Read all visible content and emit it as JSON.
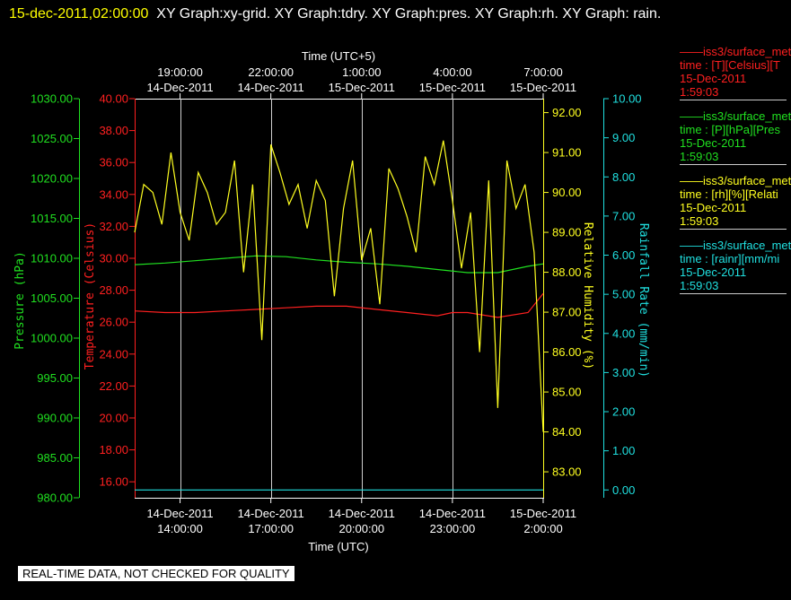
{
  "header": {
    "timestamp": "15-dec-2011,02:00:00",
    "titles": "XY Graph:xy-grid.  XY Graph:tdry.  XY Graph:pres.  XY Graph:rh.  XY Graph: rain."
  },
  "footer": {
    "notice": "REAL-TIME DATA, NOT CHECKED FOR QUALITY"
  },
  "legend": [
    {
      "line": "——iss3/surface_met",
      "units": "time : [T][Celsius][T",
      "date": "15-Dec-2011",
      "time": "1:59:03",
      "color": "#ff2020"
    },
    {
      "line": "——iss3/surface_met",
      "units": "time : [P][hPa][Pres",
      "date": "15-Dec-2011",
      "time": "1:59:03",
      "color": "#20e020"
    },
    {
      "line": "——iss3/surface_met",
      "units": "time : [rh][%][Relati",
      "date": "15-Dec-2011",
      "time": "1:59:03",
      "color": "#ffff20"
    },
    {
      "line": "——iss3/surface_met",
      "units": "time : [rainr][mm/mi",
      "date": "15-Dec-2011",
      "time": "1:59:03",
      "color": "#20e0e0"
    }
  ],
  "chart_data": {
    "type": "line",
    "x_top_label": "Time (UTC+5)",
    "x_bottom_label": "Time (UTC)",
    "x_range_utc_hours": [
      12.5,
      26
    ],
    "grid": true,
    "x_ticks_bottom": [
      {
        "hour": 14,
        "date": "14-Dec-2011",
        "time": "14:00:00"
      },
      {
        "hour": 17,
        "date": "14-Dec-2011",
        "time": "17:00:00"
      },
      {
        "hour": 20,
        "date": "14-Dec-2011",
        "time": "20:00:00"
      },
      {
        "hour": 23,
        "date": "14-Dec-2011",
        "time": "23:00:00"
      },
      {
        "hour": 26,
        "date": "15-Dec-2011",
        "time": "2:00:00"
      }
    ],
    "x_ticks_top": [
      {
        "hour": 14,
        "time": "19:00:00",
        "date": "14-Dec-2011"
      },
      {
        "hour": 17,
        "time": "22:00:00",
        "date": "14-Dec-2011"
      },
      {
        "hour": 20,
        "time": "1:00:00",
        "date": "15-Dec-2011"
      },
      {
        "hour": 23,
        "time": "4:00:00",
        "date": "15-Dec-2011"
      },
      {
        "hour": 26,
        "time": "7:00:00",
        "date": "15-Dec-2011"
      }
    ],
    "axes": {
      "pressure": {
        "label": "Pressure (hPa)",
        "range": [
          980,
          1030
        ],
        "ticks": [
          "980.00",
          "985.00",
          "990.00",
          "995.00",
          "1000.00",
          "1005.00",
          "1010.00",
          "1015.00",
          "1020.00",
          "1025.00",
          "1030.00"
        ],
        "color": "#20e020"
      },
      "temperature": {
        "label": "Temperature (Celsius)",
        "range": [
          15,
          40
        ],
        "ticks": [
          "16.00",
          "18.00",
          "20.00",
          "22.00",
          "24.00",
          "26.00",
          "28.00",
          "30.00",
          "32.00",
          "34.00",
          "36.00",
          "38.00",
          "40.00"
        ],
        "color": "#ff2020"
      },
      "humidity": {
        "label": "Relative Humidity (%)",
        "range": [
          82.35,
          92.35
        ],
        "ticks": [
          "83.00",
          "84.00",
          "85.00",
          "86.00",
          "87.00",
          "88.00",
          "89.00",
          "90.00",
          "91.00",
          "92.00"
        ],
        "color": "#ffff20"
      },
      "rainfall": {
        "label": "Rainfall Rate (mm/min)",
        "range": [
          -0.2,
          10
        ],
        "ticks": [
          "0.00",
          "1.00",
          "2.00",
          "3.00",
          "4.00",
          "5.00",
          "6.00",
          "7.00",
          "8.00",
          "9.00",
          "10.00"
        ],
        "color": "#20e0e0"
      }
    },
    "series": [
      {
        "name": "iss3/surface_met pres",
        "axis": "pressure",
        "x": [
          12.5,
          13.5,
          14.5,
          15.5,
          16.5,
          17.5,
          18.5,
          19.5,
          20.5,
          21.5,
          22.5,
          23.5,
          24.5,
          25.5,
          26
        ],
        "y": [
          1009.2,
          1009.4,
          1009.7,
          1010.0,
          1010.3,
          1010.2,
          1009.8,
          1009.5,
          1009.3,
          1009.0,
          1008.6,
          1008.2,
          1008.2,
          1009.0,
          1009.3
        ]
      },
      {
        "name": "iss3/surface_met T",
        "axis": "temperature",
        "x": [
          12.5,
          13.5,
          14.5,
          15.5,
          16.5,
          17.5,
          18.5,
          19.5,
          20.5,
          21.5,
          22.5,
          23.0,
          23.5,
          24.5,
          25.5,
          26
        ],
        "y": [
          26.7,
          26.6,
          26.6,
          26.7,
          26.8,
          26.9,
          27.0,
          27.0,
          26.8,
          26.6,
          26.4,
          26.6,
          26.6,
          26.3,
          26.6,
          27.8
        ]
      },
      {
        "name": "iss3/surface_met rh",
        "axis": "humidity",
        "x": [
          12.5,
          12.8,
          13.1,
          13.4,
          13.7,
          14.0,
          14.3,
          14.6,
          14.9,
          15.2,
          15.5,
          15.8,
          16.1,
          16.4,
          16.7,
          17.0,
          17.3,
          17.6,
          17.9,
          18.2,
          18.5,
          18.8,
          19.1,
          19.4,
          19.7,
          20.0,
          20.3,
          20.6,
          20.9,
          21.2,
          21.5,
          21.8,
          22.1,
          22.4,
          22.7,
          23.0,
          23.3,
          23.6,
          23.9,
          24.2,
          24.5,
          24.8,
          25.1,
          25.4,
          25.7,
          26.0
        ],
        "y": [
          89.0,
          90.2,
          90.0,
          89.2,
          91.0,
          89.5,
          88.8,
          90.5,
          90.0,
          89.2,
          89.5,
          90.8,
          88.0,
          90.2,
          86.3,
          91.2,
          90.5,
          89.7,
          90.2,
          89.1,
          90.3,
          89.8,
          87.4,
          89.6,
          90.8,
          88.3,
          89.1,
          87.2,
          90.6,
          90.1,
          89.4,
          88.5,
          90.9,
          90.2,
          91.3,
          89.8,
          88.1,
          89.5,
          86.0,
          90.3,
          84.6,
          90.8,
          89.6,
          90.2,
          88.5,
          84.0
        ]
      },
      {
        "name": "iss3/surface_met rainr",
        "axis": "rainfall",
        "x": [
          12.5,
          26
        ],
        "y": [
          0.0,
          0.0
        ]
      }
    ]
  }
}
